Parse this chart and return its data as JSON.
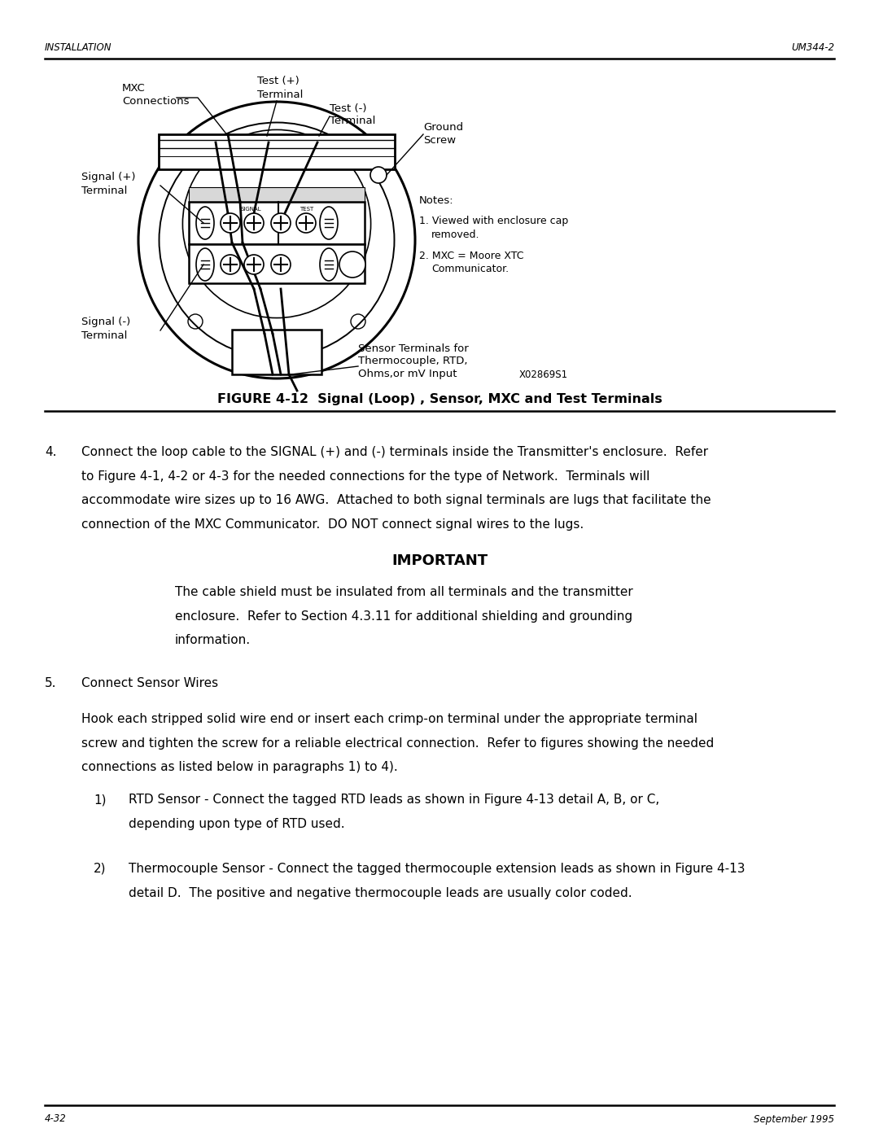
{
  "page_width": 10.8,
  "page_height": 13.97,
  "bg_color": "#ffffff",
  "header_left": "INSTALLATION",
  "header_right": "UM344-2",
  "footer_left": "4-32",
  "footer_right": "September 1995",
  "figure_caption": "FIGURE 4-12  Signal (Loop) , Sensor, MXC and Test Terminals",
  "notes_title": "Notes:",
  "note1_line1": "1. Viewed with enclosure cap",
  "note1_line2": "   removed.",
  "note2_line1": "2. MXC = Moore XTC",
  "note2_line2": "   Communicator.",
  "x02869s1": "X02869S1",
  "label_mxc1": "MXC",
  "label_mxc2": "Connections",
  "label_test_plus1": "Test (+)",
  "label_test_plus2": "Terminal",
  "label_test_minus1": "Test (-)",
  "label_test_minus2": "Terminal",
  "label_ground1": "Ground",
  "label_ground2": "Screw",
  "label_sigplus1": "Signal (+)",
  "label_sigplus2": "Terminal",
  "label_sigminus1": "Signal (-)",
  "label_sigminus2": "Terminal",
  "label_sensor1": "Sensor Terminals for",
  "label_sensor2": "Thermocouple, RTD,",
  "label_sensor3": "Ohms,or mV Input",
  "label_signal_header": "SIGNAL",
  "label_test_header": "TEST",
  "section4_num": "4.",
  "section4_line1": "Connect the loop cable to the SIGNAL (+) and (-) terminals inside the Transmitter's enclosure.  Refer",
  "section4_line2": "to Figure 4-1, 4-2 or 4-3 for the needed connections for the type of Network.  Terminals will",
  "section4_line3": "accommodate wire sizes up to 16 AWG.  Attached to both signal terminals are lugs that facilitate the",
  "section4_line4": "connection of the MXC Communicator.  DO NOT connect signal wires to the lugs.",
  "important_title": "IMPORTANT",
  "imp_line1": "The cable shield must be insulated from all terminals and the transmitter",
  "imp_line2": "enclosure.  Refer to Section 4.3.11 for additional shielding and grounding",
  "imp_line3": "information.",
  "section5_num": "5.",
  "section5_title": "Connect Sensor Wires",
  "sec5_line1": "Hook each stripped solid wire end or insert each crimp-on terminal under the appropriate terminal",
  "sec5_line2": "screw and tighten the screw for a reliable electrical connection.  Refer to figures showing the needed",
  "sec5_line3": "connections as listed below in paragraphs 1) to 4).",
  "item1_num": "1)",
  "item1_line1": "RTD Sensor - Connect the tagged RTD leads as shown in Figure 4-13 detail A, B, or C,",
  "item1_line2": "depending upon type of RTD used.",
  "item2_num": "2)",
  "item2_line1": "Thermocouple Sensor - Connect the tagged thermocouple extension leads as shown in Figure 4-13",
  "item2_line2": "detail D.  The positive and negative thermocouple leads are usually color coded."
}
